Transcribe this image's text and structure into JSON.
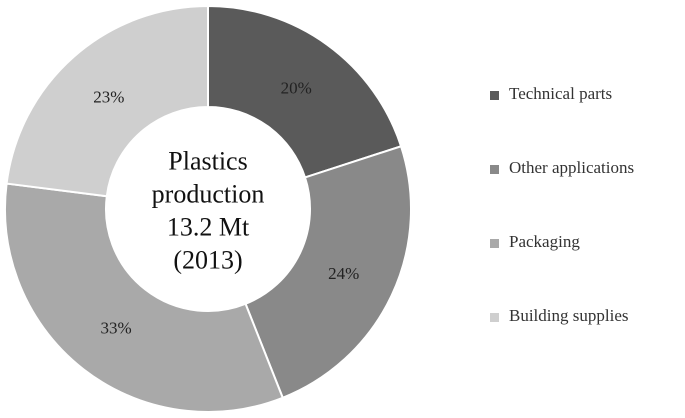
{
  "chart_data": {
    "type": "pie",
    "variant": "donut",
    "title": "",
    "center_text": [
      "Plastics",
      "production",
      "13.2 Mt",
      "(2013)"
    ],
    "categories": [
      "Technical parts",
      "Other applications",
      "Packaging",
      "Building supplies"
    ],
    "values": [
      20,
      24,
      33,
      23
    ],
    "labels": [
      "20%",
      "24%",
      "33%",
      "23%"
    ],
    "unit": "%",
    "legend_position": "right",
    "colors": [
      "#5a5a5a",
      "#898989",
      "#a9a9a9",
      "#cfcfcf"
    ],
    "border_color": "#ffffff"
  }
}
